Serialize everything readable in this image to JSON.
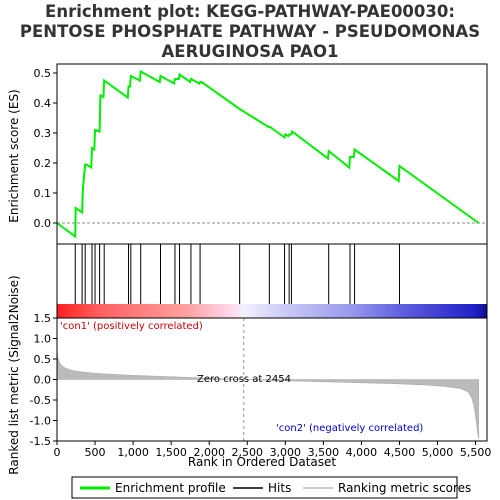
{
  "chart_data": {
    "type": "line",
    "title_lines": [
      "Enrichment plot: KEGG-PATHWAY-PAE00030:",
      "PENTOSE PHOSPHATE PATHWAY - PSEUDOMONAS",
      "AERUGINOSA PAO1"
    ],
    "top_panel": {
      "ylabel": "Enrichment score (ES)",
      "ylim": [
        -0.07,
        0.53
      ],
      "yticks": [
        "0.0",
        "0.1",
        "0.2",
        "0.3",
        "0.4",
        "0.5"
      ],
      "ytick_values": [
        0.0,
        0.1,
        0.2,
        0.3,
        0.4,
        0.5
      ],
      "series": [
        {
          "name": "Enrichment profile",
          "color": "#00ee00",
          "x": [
            0,
            240,
            245,
            330,
            340,
            370,
            380,
            450,
            460,
            490,
            500,
            560,
            570,
            610,
            620,
            930,
            940,
            960,
            970,
            1090,
            1100,
            1350,
            1360,
            1540,
            1550,
            1600,
            1610,
            1750,
            1760,
            1870,
            1880,
            1900,
            2400,
            2780,
            2800,
            2990,
            3000,
            3040,
            3050,
            3080,
            3090,
            3560,
            3570,
            3840,
            3850,
            3900,
            3910,
            4490,
            4500,
            5540
          ],
          "y": [
            0.0,
            -0.045,
            0.05,
            0.035,
            0.115,
            0.195,
            0.195,
            0.185,
            0.25,
            0.245,
            0.31,
            0.305,
            0.425,
            0.42,
            0.475,
            0.418,
            0.455,
            0.455,
            0.49,
            0.475,
            0.505,
            0.47,
            0.49,
            0.465,
            0.48,
            0.48,
            0.495,
            0.47,
            0.48,
            0.465,
            0.47,
            0.47,
            0.38,
            0.32,
            0.32,
            0.285,
            0.295,
            0.29,
            0.295,
            0.295,
            0.305,
            0.215,
            0.24,
            0.185,
            0.22,
            0.22,
            0.245,
            0.14,
            0.19,
            0.0
          ]
        }
      ]
    },
    "hits": {
      "name": "Hits",
      "x": [
        240,
        330,
        370,
        460,
        500,
        560,
        620,
        940,
        970,
        1100,
        1360,
        1550,
        1610,
        1760,
        1880,
        2400,
        2790,
        2990,
        3050,
        3080,
        3570,
        3850,
        3910,
        4500
      ]
    },
    "bottom_panel": {
      "ylabel": "Ranked list metric (Signal2Noise)",
      "ylim": [
        -1.5,
        1.5
      ],
      "yticks": [
        "1.5",
        "1.0",
        "0.5",
        "0.0",
        "-0.5",
        "-1.0",
        "-1.5"
      ],
      "ytick_values": [
        1.5,
        1.0,
        0.5,
        0.0,
        -0.5,
        -1.0,
        -1.5
      ],
      "metric_curve": {
        "name": "Ranking metric scores",
        "x": [
          0,
          10,
          30,
          60,
          100,
          150,
          200,
          300,
          400,
          500,
          600,
          800,
          1000,
          1300,
          1600,
          2000,
          2454,
          2800,
          3200,
          3600,
          4000,
          4400,
          4800,
          5100,
          5300,
          5400,
          5450,
          5480,
          5500,
          5520,
          5540
        ],
        "y": [
          0.75,
          0.55,
          0.42,
          0.34,
          0.29,
          0.25,
          0.22,
          0.19,
          0.17,
          0.15,
          0.14,
          0.12,
          0.1,
          0.08,
          0.06,
          0.03,
          0.0,
          -0.02,
          -0.04,
          -0.06,
          -0.08,
          -0.1,
          -0.13,
          -0.17,
          -0.22,
          -0.3,
          -0.45,
          -0.65,
          -0.9,
          -1.2,
          -1.45
        ]
      },
      "zero_cross_label": "Zero cross at 2454",
      "zero_cross_x": 2454,
      "pos_label": "'con1' (positively correlated)",
      "neg_label": "'con2' (negatively correlated)"
    },
    "xlabel": "Rank in Ordered Dataset",
    "xlim": [
      0,
      5650
    ],
    "xticks": [
      "0",
      "500",
      "1,000",
      "1,500",
      "2,000",
      "2,500",
      "3,000",
      "3,500",
      "4,000",
      "4,500",
      "5,000",
      "5,500"
    ],
    "xtick_values": [
      0,
      500,
      1000,
      1500,
      2000,
      2500,
      3000,
      3500,
      4000,
      4500,
      5000,
      5500
    ],
    "legend": {
      "placement": "bottom",
      "items": [
        "Enrichment profile",
        "Hits",
        "Ranking metric scores"
      ]
    },
    "colors": {
      "enrichment": "#00ee00",
      "hits": "#000000",
      "metric": "#bbbbbb",
      "pos_label": "#cc0000",
      "neg_label": "#0000cc"
    }
  }
}
